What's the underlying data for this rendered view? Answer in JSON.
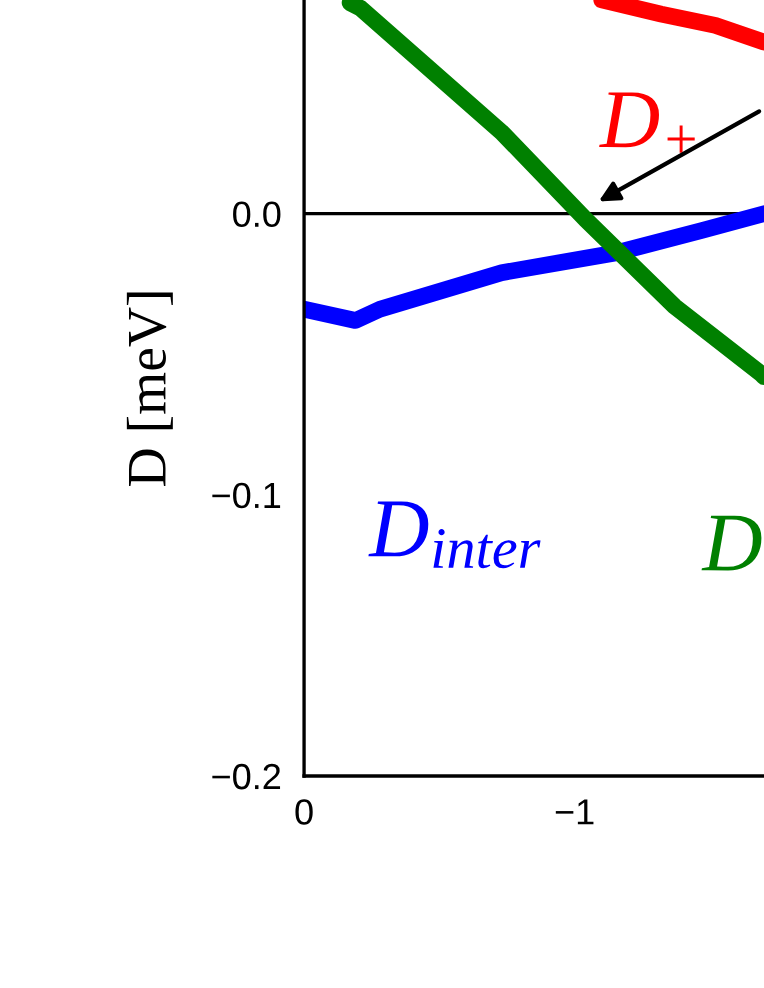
{
  "chart_data": {
    "type": "line",
    "ylabel": "D [meV]",
    "xlim": [
      0,
      -1.7
    ],
    "ylim": [
      -0.2,
      0.076
    ],
    "xticks": [
      0,
      {
        "value": -1,
        "label": "−1"
      }
    ],
    "yticks": [
      {
        "value": -0.2,
        "label": "−0.2"
      },
      {
        "value": -0.1,
        "label": "−0.1"
      },
      {
        "value": 0,
        "label": "0.0"
      }
    ],
    "grid": false,
    "legend": false,
    "series": [
      {
        "name": "D$_{+}$",
        "color": "#ff0000",
        "x": [
          -1.1,
          -1.32,
          -1.52,
          -1.7
        ],
        "values": [
          0.076,
          0.071,
          0.067,
          0.061
        ]
      },
      {
        "name": "D$_{inter}$",
        "color": "#0000ff",
        "x": [
          0,
          -0.19,
          -0.28,
          -0.73,
          -1.15,
          -1.47,
          -1.7
        ],
        "values": [
          -0.034,
          -0.038,
          -0.034,
          -0.021,
          -0.014,
          -0.006,
          0.0
        ]
      },
      {
        "name": "D",
        "color": "#008000",
        "x": [
          -0.17,
          -0.21,
          -0.73,
          -1.04,
          -1.37,
          -1.69,
          -1.7
        ],
        "values": [
          0.075,
          0.073,
          0.029,
          -0.002,
          -0.033,
          -0.057,
          -0.058
        ]
      }
    ],
    "ref_lines": [
      {
        "axis": "y",
        "value": 0,
        "color": "#000000"
      }
    ]
  }
}
